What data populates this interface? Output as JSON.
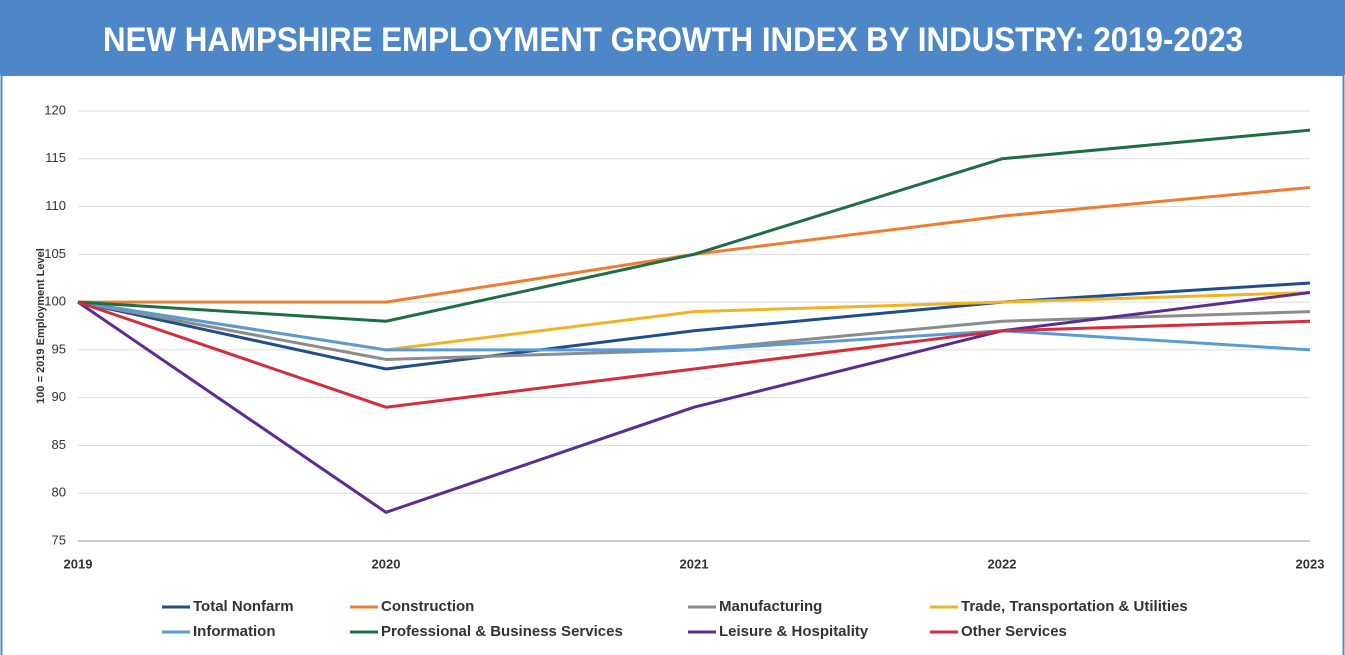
{
  "chart_data": {
    "type": "line",
    "title": "NEW HAMPSHIRE EMPLOYMENT GROWTH INDEX BY INDUSTRY:  2019-2023",
    "y_label": "100 = 2019 Employment Level",
    "categories": [
      "2019",
      "2020",
      "2021",
      "2022",
      "2023"
    ],
    "series": [
      {
        "name": "Total Nonfarm",
        "color": "#1f4e8c",
        "values": [
          100,
          93,
          97,
          100,
          102
        ]
      },
      {
        "name": "Construction",
        "color": "#ed7d31",
        "values": [
          100,
          100,
          105,
          109,
          112
        ]
      },
      {
        "name": "Manufacturing",
        "color": "#8c8c8c",
        "values": [
          100,
          94,
          95,
          98,
          99
        ]
      },
      {
        "name": "Trade, Transportation & Utilities",
        "color": "#f0b323",
        "values": [
          100,
          95,
          99,
          100,
          101
        ]
      },
      {
        "name": "Information",
        "color": "#5b9bd5",
        "values": [
          100,
          95,
          95,
          97,
          95
        ]
      },
      {
        "name": "Professional & Business Services",
        "color": "#1e6e45",
        "values": [
          100,
          98,
          105,
          115,
          118
        ]
      },
      {
        "name": "Leisure & Hospitality",
        "color": "#5c2d91",
        "values": [
          100,
          78,
          89,
          97,
          101
        ]
      },
      {
        "name": "Other Services",
        "color": "#d22e3c",
        "values": [
          100,
          89,
          93,
          97,
          98
        ]
      }
    ],
    "ylim": [
      75,
      120
    ],
    "yticks": [
      75,
      80,
      85,
      90,
      95,
      100,
      105,
      110,
      115,
      120
    ],
    "grid": true,
    "legend": "bottom"
  }
}
